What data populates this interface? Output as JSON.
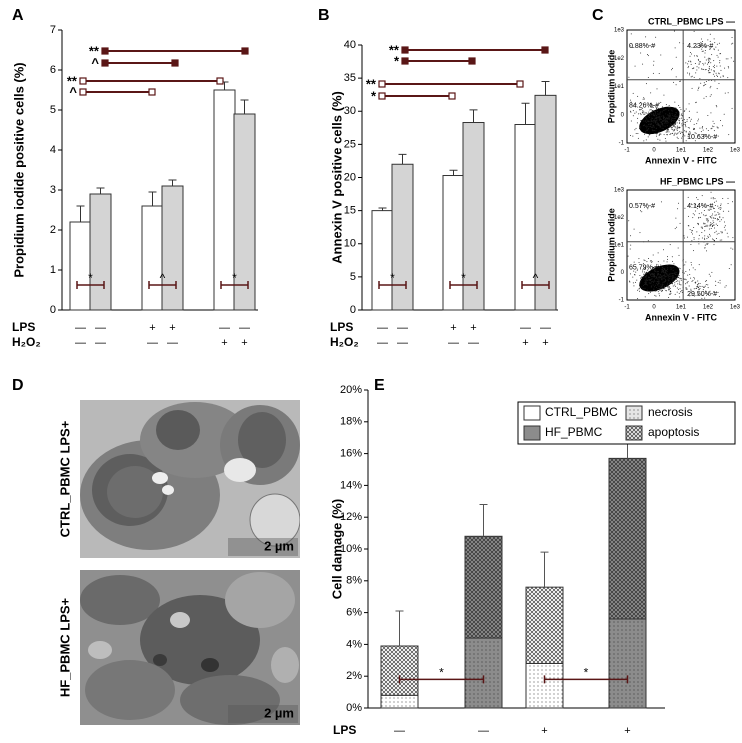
{
  "chart_data": [
    {
      "type": "bar",
      "panel": "A",
      "ylabel": "Propidium iodide positive cells (%)",
      "series": [
        {
          "color": "#ffffff",
          "values": [
            2.2,
            2.6,
            5.5
          ],
          "errors": [
            0.4,
            0.35,
            0.2
          ]
        },
        {
          "color": "#d4d4d4",
          "values": [
            2.9,
            3.1,
            4.9
          ],
          "errors": [
            0.15,
            0.15,
            0.35
          ]
        }
      ],
      "ylim": [
        0,
        7
      ],
      "yticks": [
        0,
        1,
        2,
        3,
        4,
        5,
        6,
        7
      ],
      "brackets": [
        "**",
        "^",
        "**",
        "^"
      ],
      "inner_brackets": [
        "*",
        "^",
        "*"
      ],
      "conditions": [
        {
          "label": "LPS",
          "marks": [
            "—",
            "—",
            "+",
            "+",
            "—",
            "—"
          ]
        },
        {
          "label": "H₂O₂",
          "marks": [
            "—",
            "—",
            "—",
            "—",
            "+",
            "+"
          ]
        }
      ]
    },
    {
      "type": "bar",
      "panel": "B",
      "ylabel": "Annexin V positive cells (%)",
      "series": [
        {
          "color": "#ffffff",
          "values": [
            15,
            20.3,
            28
          ],
          "errors": [
            0.4,
            0.8,
            3.2
          ]
        },
        {
          "color": "#d4d4d4",
          "values": [
            22,
            28.3,
            32.4
          ],
          "errors": [
            1.5,
            1.9,
            2.1
          ]
        }
      ],
      "ylim": [
        0,
        40
      ],
      "yticks": [
        0,
        5,
        10,
        15,
        20,
        25,
        30,
        35,
        40
      ],
      "brackets": [
        "**",
        "*",
        "**",
        "*"
      ],
      "inner_brackets": [
        "*",
        "*",
        "^"
      ],
      "conditions": [
        {
          "label": "LPS",
          "marks": [
            "—",
            "—",
            "+",
            "+",
            "—",
            "—"
          ]
        },
        {
          "label": "H₂O₂",
          "marks": [
            "—",
            "—",
            "—",
            "—",
            "+",
            "+"
          ]
        }
      ]
    },
    {
      "type": "flow",
      "panel": "C",
      "title": "CTRL_PBMC LPS —",
      "xlabel": "Annexin V - FITC",
      "ylabel": "Propidium Iodide",
      "xtick_labels": [
        "-1",
        "0",
        "1e1",
        "1e2",
        "1e3"
      ],
      "ytick_labels": [
        "1e3",
        "1e2",
        "1e1",
        "0",
        "-1"
      ],
      "quadrant_labels": [
        "0.88%-#",
        "4.23%-#",
        "84.26%-#",
        "10.63%-#"
      ]
    },
    {
      "type": "flow",
      "title": "HF_PBMC LPS —",
      "xlabel": "Annexin V - FITC",
      "ylabel": "Propidium Iodide",
      "xtick_labels": [
        "-1",
        "0",
        "1e1",
        "1e2",
        "1e3"
      ],
      "ytick_labels": [
        "1e3",
        "1e2",
        "1e1",
        "0",
        "-1"
      ],
      "quadrant_labels": [
        "0.57%-#",
        "4.14%-#",
        "65.79%-#",
        "29.50%-#"
      ]
    },
    {
      "type": "stacked-bar",
      "panel": "E",
      "ylabel": "Cell damage (%)",
      "groups": [
        {
          "name": "CTRL_PBMC",
          "color": "#ffffff"
        },
        {
          "name": "HF_PBMC",
          "color": "#8c8c8c"
        }
      ],
      "series": [
        {
          "name": "necrosis",
          "pattern": "dots",
          "color": "#222222",
          "values": [
            0.8,
            4.4,
            2.8,
            5.6
          ]
        },
        {
          "name": "apoptosis",
          "pattern": "crosshatch",
          "color": "#222222",
          "values": [
            3.1,
            6.4,
            4.8,
            10.1
          ],
          "errors": [
            2.2,
            2.0,
            2.2,
            3.1
          ]
        }
      ],
      "ylim": [
        0,
        20
      ],
      "yticks": [
        {
          "value": 0,
          "label": "0%"
        },
        {
          "value": 2,
          "label": "2%"
        },
        {
          "value": 4,
          "label": "4%"
        },
        {
          "value": 6,
          "label": "6%"
        },
        {
          "value": 8,
          "label": "8%"
        },
        {
          "value": 10,
          "label": "10%"
        },
        {
          "value": 12,
          "label": "12%"
        },
        {
          "value": 14,
          "label": "14%"
        },
        {
          "value": 16,
          "label": "16%"
        },
        {
          "value": 18,
          "label": "18%"
        },
        {
          "value": 20,
          "label": "20%"
        }
      ],
      "inner_brackets": [
        "*",
        "*"
      ],
      "conditions": [
        {
          "label": "LPS",
          "marks": [
            "—",
            "—",
            "+",
            "+"
          ]
        }
      ]
    }
  ],
  "micrographs": {
    "panel": "D",
    "items": [
      {
        "label": "CTRL_PBMC LPS+",
        "scale": "2 µm"
      },
      {
        "label": "HF_PBMC LPS+",
        "scale": "2 µm"
      }
    ]
  }
}
